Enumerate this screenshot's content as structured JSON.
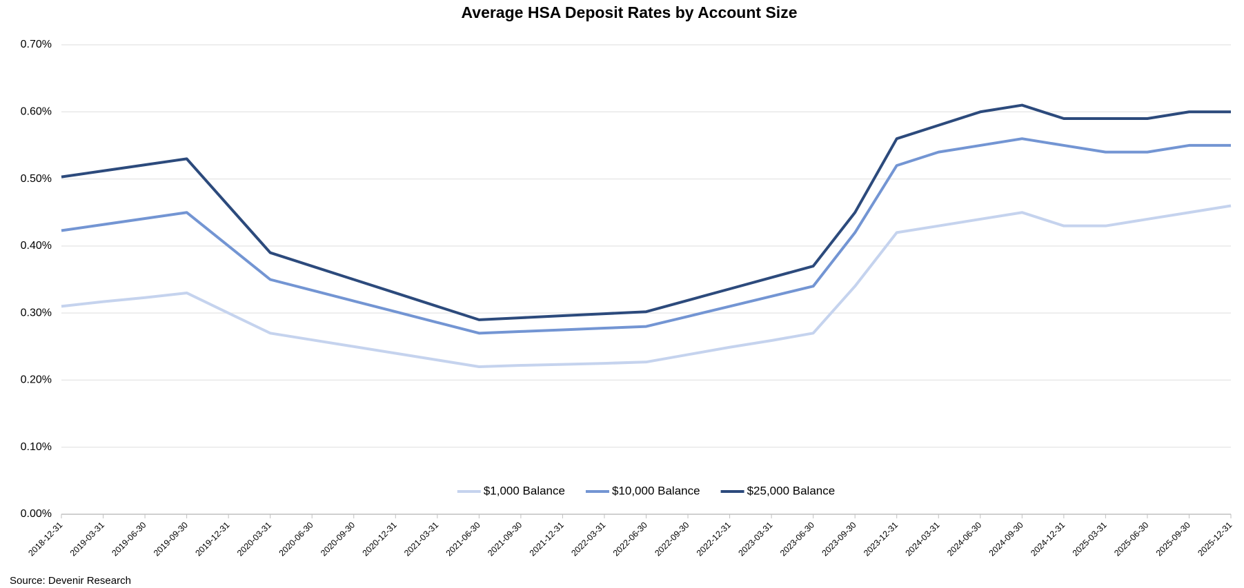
{
  "chart_data": {
    "type": "line",
    "title": "Average HSA Deposit Rates by Account Size",
    "source": "Source: Devenir Research",
    "categories": [
      "2018-12-31",
      "2019-03-31",
      "2019-06-30",
      "2019-09-30",
      "2019-12-31",
      "2020-03-31",
      "2020-06-30",
      "2020-09-30",
      "2020-12-31",
      "2021-03-31",
      "2021-06-30",
      "2021-09-30",
      "2021-12-31",
      "2022-03-31",
      "2022-06-30",
      "2022-09-30",
      "2022-12-31",
      "2023-03-31",
      "2023-06-30",
      "2023-09-30",
      "2023-12-31",
      "2024-03-31",
      "2024-06-30",
      "2024-09-30",
      "2024-12-31",
      "2025-03-31",
      "2025-06-30",
      "2025-09-30",
      "2025-12-31"
    ],
    "series": [
      {
        "name": "$1,000 Balance",
        "color": "#c5d3ee",
        "values": [
          0.31,
          0.317,
          0.323,
          0.33,
          0.3,
          0.27,
          0.26,
          0.25,
          0.24,
          0.23,
          0.22,
          0.222,
          0.2235,
          0.225,
          0.227,
          0.238,
          0.249,
          0.259,
          0.27,
          0.34,
          0.42,
          0.43,
          0.44,
          0.45,
          0.43,
          0.43,
          0.44,
          0.45,
          0.46
        ]
      },
      {
        "name": "$10,000 Balance",
        "color": "#7395d3",
        "values": [
          0.423,
          0.432,
          0.441,
          0.45,
          0.4,
          0.35,
          0.334,
          0.318,
          0.302,
          0.286,
          0.27,
          0.2725,
          0.275,
          0.2775,
          0.28,
          0.295,
          0.31,
          0.325,
          0.34,
          0.42,
          0.52,
          0.54,
          0.55,
          0.56,
          0.55,
          0.54,
          0.54,
          0.55,
          0.55
        ]
      },
      {
        "name": "$25,000 Balance",
        "color": "#2c4a7c",
        "values": [
          0.503,
          0.512,
          0.521,
          0.53,
          0.46,
          0.39,
          0.37,
          0.35,
          0.33,
          0.31,
          0.29,
          0.293,
          0.296,
          0.299,
          0.302,
          0.319,
          0.336,
          0.353,
          0.37,
          0.45,
          0.56,
          0.58,
          0.6,
          0.61,
          0.59,
          0.59,
          0.59,
          0.6,
          0.6
        ]
      }
    ],
    "ylim": [
      0,
      0.7
    ],
    "yticks": [
      {
        "value": 0,
        "label": "0.00%"
      },
      {
        "value": 0.1,
        "label": "0.10%"
      },
      {
        "value": 0.2,
        "label": "0.20%"
      },
      {
        "value": 0.3,
        "label": "0.30%"
      },
      {
        "value": 0.4,
        "label": "0.40%"
      },
      {
        "value": 0.5,
        "label": "0.50%"
      },
      {
        "value": 0.6,
        "label": "0.60%"
      },
      {
        "value": 0.7,
        "label": "0.70%"
      }
    ],
    "grid": true,
    "legend": "bottom"
  }
}
